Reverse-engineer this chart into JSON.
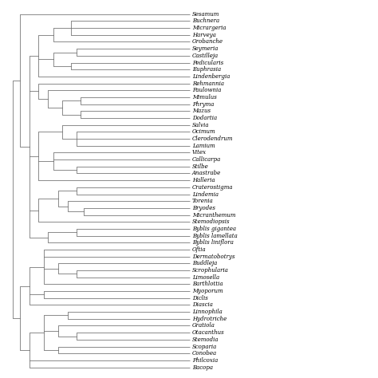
{
  "background_color": "#ffffff",
  "line_color": "#777777",
  "line_width": 0.6,
  "font_size": 5.0,
  "taxa_order": [
    "Sesamum",
    "Buchnera",
    "Micrargeria",
    "Harveya",
    "Orobanche",
    "Seymeria",
    "Castilleja",
    "Pedicularis",
    "Euphrasia",
    "Lindenbergia",
    "Rehmannia",
    "Paulownia",
    "Mimulus",
    "Phryma",
    "Mazus",
    "Dodartia",
    "Salvia",
    "Ocimum",
    "Clerodendrum",
    "Lamium",
    "Vitex",
    "Callicarpa",
    "Stilbe",
    "Anastrabe",
    "Halleria",
    "Craterostigma",
    "Lindemia",
    "Torenia",
    "Bryodes",
    "Micranthemum",
    "Stemodiopsis",
    "Byblis gigantea",
    "Byblis lamellata",
    "Byblis liniflora",
    "Oftia",
    "Dermatobotrys",
    "Buddleja",
    "Scrophularia",
    "Limosella",
    "Barthlottia",
    "Myoporum",
    "Diclis",
    "Diascia",
    "Linnophila",
    "Hydrotriche",
    "Gratiola",
    "Otacanthus",
    "Stemodia",
    "Scoparia",
    "Conobea",
    "Philcoxia",
    "Bacopa"
  ]
}
